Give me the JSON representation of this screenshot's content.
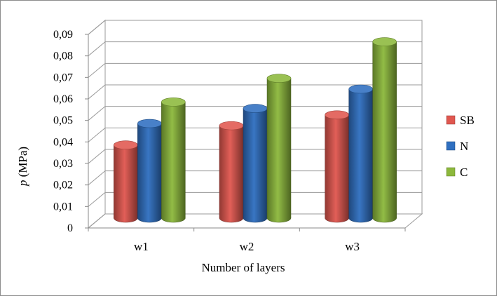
{
  "chart_data": {
    "type": "bar",
    "style": "3d-cylinder",
    "categories": [
      "w1",
      "w2",
      "w3"
    ],
    "series": [
      {
        "name": "SB",
        "values": [
          0.034,
          0.043,
          0.048
        ],
        "color": "#e0574f"
      },
      {
        "name": "N",
        "values": [
          0.044,
          0.051,
          0.06
        ],
        "color": "#2f6fc0"
      },
      {
        "name": "C",
        "values": [
          0.054,
          0.065,
          0.082
        ],
        "color": "#8cb83c"
      }
    ],
    "ylim": [
      0,
      0.09
    ],
    "yticks": [
      "0",
      "0,01",
      "0,02",
      "0,03",
      "0,04",
      "0,05",
      "0,06",
      "0,07",
      "0,08",
      "0,09"
    ],
    "ylabel_italic": "p",
    "ylabel_rest": " (MPa)",
    "xlabel": "Number of layers",
    "grid": true,
    "legend_position": "right"
  }
}
